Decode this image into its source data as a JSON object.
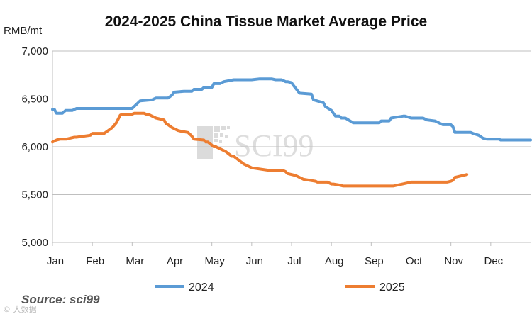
{
  "chart_data": {
    "type": "line",
    "title": "2024-2025 China Tissue Market Average Price",
    "ylabel": "RMB/mt",
    "xlabel": "",
    "ylim": [
      5000,
      7000
    ],
    "yticks": [
      5000,
      5500,
      6000,
      6500,
      7000
    ],
    "ytick_labels": [
      "5,000",
      "5,500",
      "6,000",
      "6,500",
      "7,000"
    ],
    "xlim": [
      0,
      12
    ],
    "categories": [
      "Jan",
      "Feb",
      "Mar",
      "Apr",
      "May",
      "Jun",
      "Jul",
      "Aug",
      "Sep",
      "Oct",
      "Nov",
      "Dec"
    ],
    "grid": "horizontal",
    "legend": "bottom",
    "series": [
      {
        "name": "2024",
        "color": "#5B9BD5",
        "x": [
          0.0,
          0.05,
          0.1,
          0.2,
          0.25,
          0.33,
          0.45,
          0.5,
          0.6,
          1.0,
          1.5,
          1.75,
          2.0,
          2.05,
          2.2,
          2.5,
          2.6,
          2.9,
          3.0,
          3.05,
          3.3,
          3.5,
          3.55,
          3.75,
          3.8,
          4.0,
          4.05,
          4.2,
          4.3,
          4.55,
          4.6,
          4.85,
          5.0,
          5.2,
          5.4,
          5.5,
          5.6,
          5.75,
          5.85,
          5.9,
          6.0,
          6.05,
          6.2,
          6.5,
          6.55,
          6.8,
          6.85,
          7.0,
          7.1,
          7.2,
          7.25,
          7.35,
          7.55,
          7.7,
          8.0,
          8.2,
          8.25,
          8.35,
          8.45,
          8.5,
          8.8,
          8.85,
          9.0,
          9.3,
          9.4,
          9.6,
          9.65,
          9.8,
          10.0,
          10.05,
          10.1,
          10.5,
          10.55,
          10.7,
          10.8,
          10.9,
          11.0,
          11.2,
          11.25,
          11.5,
          11.55,
          12.0
        ],
        "values": [
          6390,
          6390,
          6350,
          6350,
          6350,
          6380,
          6380,
          6380,
          6400,
          6400,
          6400,
          6400,
          6400,
          6420,
          6480,
          6490,
          6510,
          6510,
          6540,
          6570,
          6580,
          6580,
          6600,
          6600,
          6620,
          6620,
          6660,
          6660,
          6680,
          6700,
          6700,
          6700,
          6700,
          6710,
          6710,
          6710,
          6700,
          6700,
          6680,
          6680,
          6670,
          6640,
          6560,
          6550,
          6490,
          6460,
          6420,
          6380,
          6320,
          6320,
          6300,
          6300,
          6250,
          6250,
          6250,
          6250,
          6270,
          6270,
          6270,
          6300,
          6320,
          6320,
          6300,
          6300,
          6280,
          6270,
          6260,
          6230,
          6230,
          6210,
          6150,
          6150,
          6140,
          6120,
          6090,
          6080,
          6080,
          6080,
          6070,
          6070,
          6070,
          6070
        ]
      },
      {
        "name": "2025",
        "color": "#ED7D31",
        "x": [
          0.0,
          0.05,
          0.1,
          0.2,
          0.3,
          0.35,
          0.45,
          0.55,
          0.6,
          0.95,
          1.0,
          1.05,
          1.1,
          1.15,
          1.2,
          1.3,
          1.5,
          1.6,
          1.7,
          1.75,
          1.8,
          1.9,
          2.0,
          2.05,
          2.1,
          2.2,
          2.3,
          2.35,
          2.4,
          2.5,
          2.55,
          2.6,
          2.8,
          2.85,
          2.9,
          3.0,
          3.1,
          3.15,
          3.25,
          3.4,
          3.5,
          3.55,
          3.8,
          3.85,
          3.9,
          4.05,
          4.1,
          4.15,
          4.35,
          4.5,
          4.55,
          4.8,
          4.9,
          4.95,
          5.0,
          5.5,
          5.75,
          5.8,
          5.85,
          5.9,
          6.1,
          6.2,
          6.3,
          6.6,
          6.65,
          6.9,
          7.0,
          7.05,
          7.2,
          7.3,
          7.5,
          7.6,
          8.0,
          8.4,
          8.5,
          8.55,
          9.0,
          9.05,
          9.1,
          9.9,
          10.0,
          10.05,
          10.1,
          10.4
        ],
        "values": [
          6050,
          6060,
          6070,
          6080,
          6080,
          6080,
          6090,
          6100,
          6100,
          6120,
          6140,
          6140,
          6140,
          6140,
          6140,
          6140,
          6200,
          6250,
          6330,
          6340,
          6340,
          6340,
          6340,
          6350,
          6350,
          6350,
          6350,
          6340,
          6340,
          6320,
          6310,
          6300,
          6280,
          6240,
          6230,
          6200,
          6180,
          6170,
          6160,
          6150,
          6110,
          6080,
          6070,
          6050,
          6050,
          6000,
          6000,
          5990,
          5950,
          5900,
          5900,
          5820,
          5800,
          5790,
          5780,
          5750,
          5750,
          5750,
          5740,
          5720,
          5700,
          5680,
          5660,
          5640,
          5630,
          5630,
          5610,
          5610,
          5600,
          5590,
          5590,
          5590,
          5590,
          5590,
          5590,
          5590,
          5630,
          5630,
          5630,
          5630,
          5640,
          5650,
          5680,
          5710
        ]
      }
    ]
  },
  "watermark": "SCI99",
  "source": "Source: sci99",
  "footer_mark": "© 大数据"
}
